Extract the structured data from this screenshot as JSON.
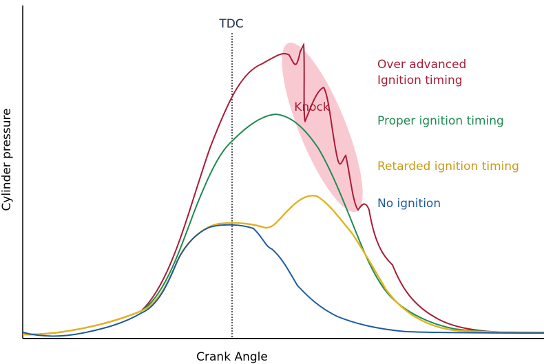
{
  "chart_data": {
    "type": "line",
    "title": "",
    "xlabel": "Crank Angle",
    "ylabel": "Cylinder pressure",
    "x_ticks_shown": false,
    "y_ticks_shown": false,
    "grid": false,
    "legend_placement": "right (labels beside curves)",
    "reference_line": {
      "label": "TDC"
    },
    "knock_annotation": {
      "label": "Knock",
      "color": "#f4aab8"
    },
    "series": [
      {
        "key": "over",
        "name": "Over advanced Ignition timing",
        "label_lines": [
          "Over advanced",
          "Ignition timing"
        ],
        "color": "#a81c36"
      },
      {
        "key": "proper",
        "name": "Proper ignition timing",
        "label_lines": [
          "Proper ignition timing"
        ],
        "color": "#1e8a52"
      },
      {
        "key": "retarded",
        "name": "Retarded ignition timing",
        "label_lines": [
          "Retarded ignition timing"
        ],
        "color": "#e2b21e"
      },
      {
        "key": "none",
        "name": "No ignition",
        "label_lines": [
          "No ignition"
        ],
        "color": "#1d5aa3"
      }
    ]
  }
}
